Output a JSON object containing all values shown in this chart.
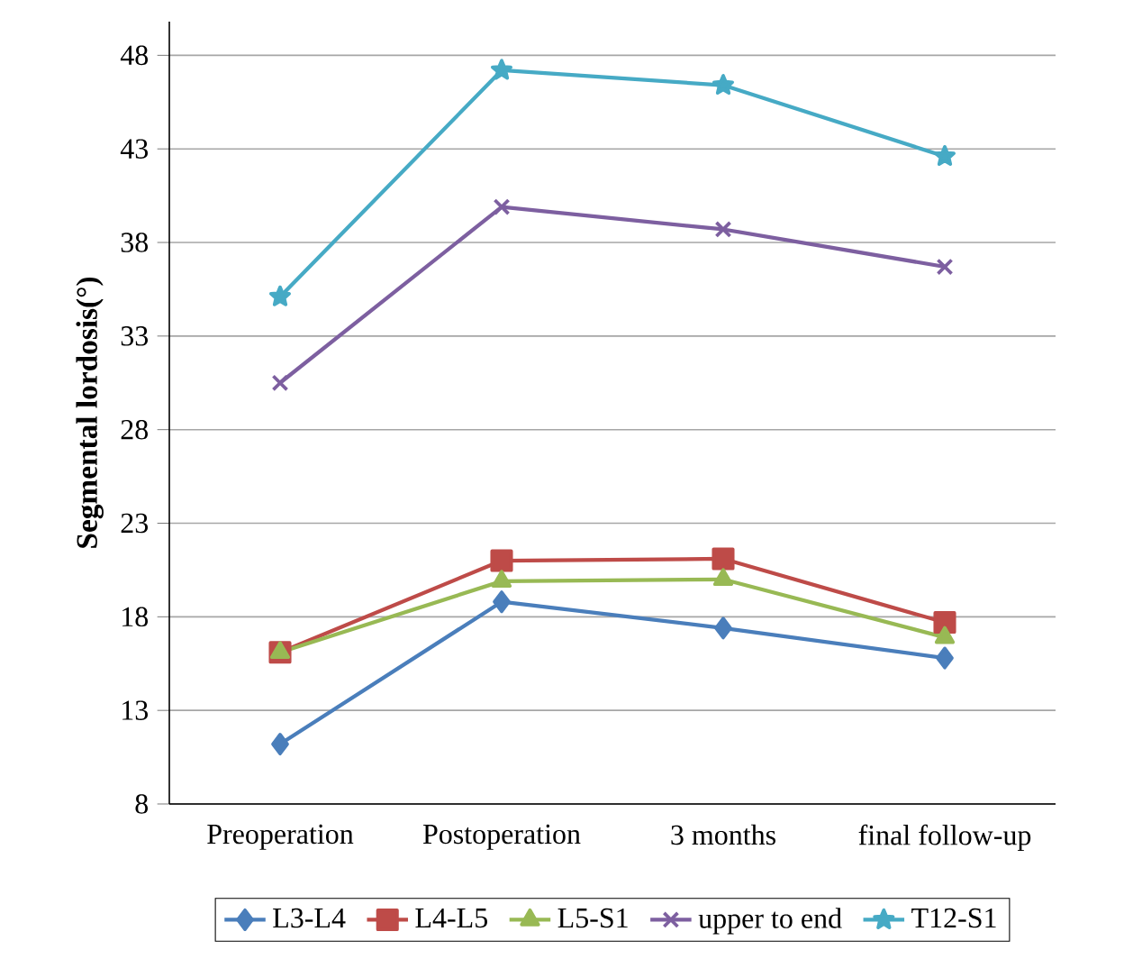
{
  "chart_data": {
    "type": "line",
    "ylabel": "Segmental lordosis(°)",
    "categories": [
      "Preoperation",
      "Postoperation",
      "3 months",
      "final follow-up"
    ],
    "ylim": [
      8,
      49.8
    ],
    "yticks": [
      8,
      13,
      18,
      23,
      28,
      33,
      38,
      43,
      48
    ],
    "grid": "y",
    "legend": "bottom",
    "line_style": "solid",
    "series": [
      {
        "name": "L3-L4",
        "color": "#4a7ebb",
        "marker": "diamond",
        "values": [
          11.2,
          18.8,
          17.4,
          15.8
        ]
      },
      {
        "name": "L4-L5",
        "color": "#be4b48",
        "marker": "square",
        "values": [
          16.1,
          21.0,
          21.1,
          17.7
        ]
      },
      {
        "name": "L5-S1",
        "color": "#98b954",
        "marker": "triangle",
        "values": [
          16.1,
          19.9,
          20.0,
          16.9
        ]
      },
      {
        "name": "upper to end",
        "color": "#7d5fa0",
        "marker": "cross",
        "values": [
          30.5,
          39.9,
          38.7,
          36.7
        ]
      },
      {
        "name": "T12-S1",
        "color": "#46aac5",
        "marker": "star",
        "values": [
          35.1,
          47.2,
          46.4,
          42.6
        ]
      }
    ]
  }
}
